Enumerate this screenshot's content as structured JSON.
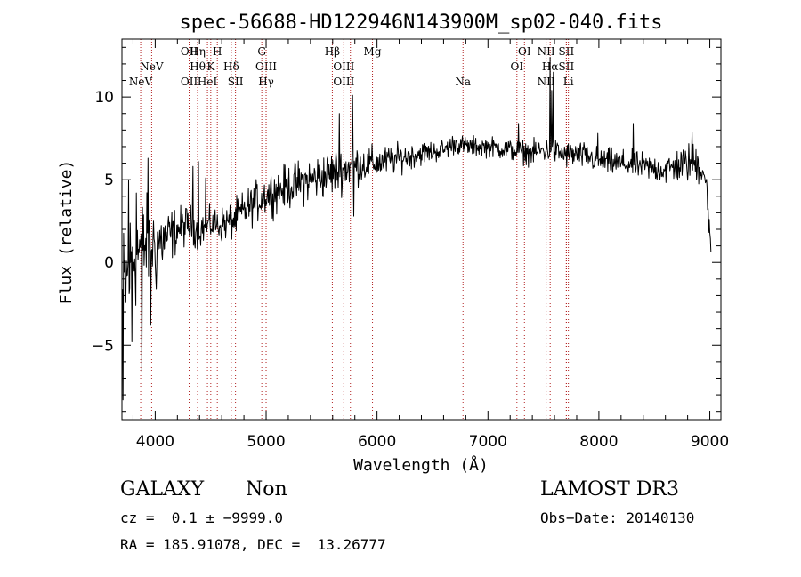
{
  "chart_data": {
    "type": "line",
    "title": "spec-56688-HD122946N143900M_sp02-040.fits",
    "xlabel": "Wavelength (Å)",
    "ylabel": "Flux (relative)",
    "xlim": [
      3700,
      9100
    ],
    "ylim": [
      -9.5,
      13.5
    ],
    "xticks": [
      4000,
      5000,
      6000,
      7000,
      8000,
      9000
    ],
    "yticks": [
      -5,
      0,
      5,
      10
    ],
    "xtick_labels": [
      "4000",
      "5000",
      "6000",
      "7000",
      "8000",
      "9000"
    ],
    "ytick_labels": [
      "−5",
      "0",
      "5",
      "10"
    ],
    "line_color": "#000000",
    "marker_color": "#b22222",
    "spectrum_anchors": [
      [
        3705,
        -2.0
      ],
      [
        3750,
        -1.0
      ],
      [
        3800,
        0.5
      ],
      [
        3900,
        1.0
      ],
      [
        4000,
        1.2
      ],
      [
        4100,
        1.4
      ],
      [
        4200,
        2.0
      ],
      [
        4300,
        2.3
      ],
      [
        4400,
        2.0
      ],
      [
        4500,
        2.3
      ],
      [
        4600,
        2.3
      ],
      [
        4700,
        2.5
      ],
      [
        4800,
        3.1
      ],
      [
        4900,
        3.6
      ],
      [
        5000,
        4.1
      ],
      [
        5200,
        4.6
      ],
      [
        5400,
        5.0
      ],
      [
        5600,
        5.4
      ],
      [
        5800,
        5.9
      ],
      [
        6000,
        6.0
      ],
      [
        6200,
        6.3
      ],
      [
        6400,
        6.6
      ],
      [
        6600,
        6.8
      ],
      [
        6700,
        7.2
      ],
      [
        6800,
        7.0
      ],
      [
        7000,
        7.0
      ],
      [
        7200,
        6.8
      ],
      [
        7400,
        6.6
      ],
      [
        7500,
        6.8
      ],
      [
        7600,
        6.7
      ],
      [
        7700,
        6.5
      ],
      [
        7800,
        6.5
      ],
      [
        7900,
        6.4
      ],
      [
        8000,
        6.1
      ],
      [
        8200,
        6.0
      ],
      [
        8400,
        5.8
      ],
      [
        8600,
        5.6
      ],
      [
        8800,
        6.0
      ],
      [
        8900,
        6.0
      ],
      [
        8950,
        5.5
      ],
      [
        9000,
        2.5
      ],
      [
        9010,
        0.0
      ]
    ],
    "spectrum_noise": [
      [
        3700,
        4.0
      ],
      [
        3900,
        2.8
      ],
      [
        4000,
        2.2
      ],
      [
        4200,
        1.2
      ],
      [
        4500,
        0.9
      ],
      [
        4800,
        1.1
      ],
      [
        5200,
        1.2
      ],
      [
        5600,
        1.3
      ],
      [
        6000,
        0.9
      ],
      [
        6500,
        0.6
      ],
      [
        7000,
        0.55
      ],
      [
        7500,
        0.7
      ],
      [
        8000,
        0.75
      ],
      [
        8500,
        0.75
      ],
      [
        9000,
        1.3
      ]
    ],
    "spectrum_features": [
      {
        "x": 3712,
        "y": -8.3
      },
      {
        "x": 3760,
        "y": 5.0
      },
      {
        "x": 3790,
        "y": -4.8
      },
      {
        "x": 3830,
        "y": 4.2
      },
      {
        "x": 3880,
        "y": -6.6
      },
      {
        "x": 3935,
        "y": 6.3
      },
      {
        "x": 3960,
        "y": -3.8
      },
      {
        "x": 4010,
        "y": -1.6
      },
      {
        "x": 4340,
        "y": 5.8
      },
      {
        "x": 4392,
        "y": 6.1
      },
      {
        "x": 4455,
        "y": 5.1
      },
      {
        "x": 5660,
        "y": 9.0
      },
      {
        "x": 5780,
        "y": 10.1
      },
      {
        "x": 5790,
        "y": 2.8
      },
      {
        "x": 7275,
        "y": 8.4
      },
      {
        "x": 7560,
        "y": 12.4
      },
      {
        "x": 7575,
        "y": 10.4
      },
      {
        "x": 7590,
        "y": 11.5
      },
      {
        "x": 7990,
        "y": 7.8
      },
      {
        "x": 8310,
        "y": 8.4
      },
      {
        "x": 8840,
        "y": 7.9
      },
      {
        "x": 8980,
        "y": 3.2
      },
      {
        "x": 8995,
        "y": 2.6
      }
    ],
    "line_markers": [
      {
        "x": 3869,
        "label": "NeV",
        "row": 2
      },
      {
        "x": 3968,
        "label": "NeV",
        "row": 1
      },
      {
        "x": 4306,
        "label": "OII",
        "row": 0
      },
      {
        "x": 4306,
        "label": "OII",
        "row": 2
      },
      {
        "x": 4383,
        "label": "Hη",
        "row": 0
      },
      {
        "x": 4383,
        "label": "Hθ",
        "row": 1
      },
      {
        "x": 4471,
        "label": "HeI",
        "row": 2
      },
      {
        "x": 4501,
        "label": "K",
        "row": 1
      },
      {
        "x": 4560,
        "label": "H",
        "row": 0
      },
      {
        "x": 4686,
        "label": "Hδ",
        "row": 1
      },
      {
        "x": 4724,
        "label": "SII",
        "row": 2
      },
      {
        "x": 4961,
        "label": "G",
        "row": 0
      },
      {
        "x": 5000,
        "label": "OIII",
        "row": 1
      },
      {
        "x": 5000,
        "label": "Hγ",
        "row": 2
      },
      {
        "x": 5597,
        "label": "Hβ",
        "row": 0
      },
      {
        "x": 5701,
        "label": "OIII",
        "row": 1
      },
      {
        "x": 5701,
        "label": "OIII",
        "row": 2
      },
      {
        "x": 5760,
        "label": "",
        "row": -1
      },
      {
        "x": 5959,
        "label": "Mg",
        "row": 0
      },
      {
        "x": 6775,
        "label": "Na",
        "row": 2
      },
      {
        "x": 7261,
        "label": "OI",
        "row": 1
      },
      {
        "x": 7329,
        "label": "OI",
        "row": 0
      },
      {
        "x": 7524,
        "label": "NII",
        "row": 0
      },
      {
        "x": 7524,
        "label": "NII",
        "row": 2
      },
      {
        "x": 7561,
        "label": "Hα",
        "row": 1
      },
      {
        "x": 7707,
        "label": "SII",
        "row": 0
      },
      {
        "x": 7707,
        "label": "SII",
        "row": 1
      },
      {
        "x": 7725,
        "label": "Li",
        "row": 2
      }
    ]
  },
  "info": {
    "classification": "GALAXY",
    "subclass": "Non",
    "survey": "LAMOST DR3",
    "redshift": "cz =  0.1 ± −9999.0",
    "obs_date": "Obs−Date: 20140130",
    "coordinates": "RA = 185.91078, DEC =  13.26777"
  }
}
